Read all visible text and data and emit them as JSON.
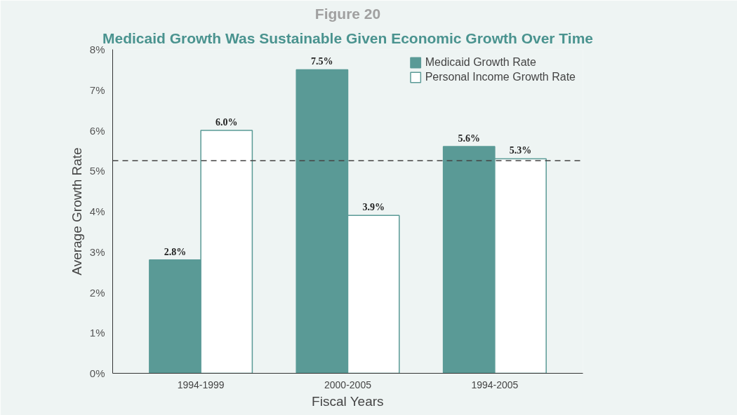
{
  "chart_data": {
    "type": "bar",
    "title": "Figure 20",
    "subtitle": "Medicaid Growth Was Sustainable Given Economic Growth Over Time",
    "xlabel": "Fiscal Years",
    "ylabel": "Average Growth Rate",
    "categories": [
      "1994-1999",
      "2000-2005",
      "1994-2005"
    ],
    "series": [
      {
        "name": "Medicaid Growth Rate",
        "color": "#5a9a96",
        "values": [
          2.8,
          7.5,
          5.6
        ],
        "value_labels": [
          "2.8%",
          "7.5%",
          "5.6%"
        ]
      },
      {
        "name": "Personal Income Growth Rate",
        "color": "#ffffff",
        "values": [
          6.0,
          3.9,
          5.3
        ],
        "value_labels": [
          "6.0%",
          "3.9%",
          "5.3%"
        ]
      }
    ],
    "ylim": [
      0,
      8
    ],
    "yticks": [
      {
        "value": 0,
        "label": "0%"
      },
      {
        "value": 1,
        "label": "1%"
      },
      {
        "value": 2,
        "label": "2%"
      },
      {
        "value": 3,
        "label": "3%"
      },
      {
        "value": 4,
        "label": "4%"
      },
      {
        "value": 5,
        "label": "5%"
      },
      {
        "value": 6,
        "label": "6%"
      },
      {
        "value": 7,
        "label": "7%"
      },
      {
        "value": 8,
        "label": "8%"
      }
    ],
    "ref_lines": [
      {
        "axis": "y",
        "value": 5.25,
        "label": null,
        "color": "#444444",
        "line_style": "dashed"
      }
    ],
    "grid": false,
    "legend": "top right"
  }
}
